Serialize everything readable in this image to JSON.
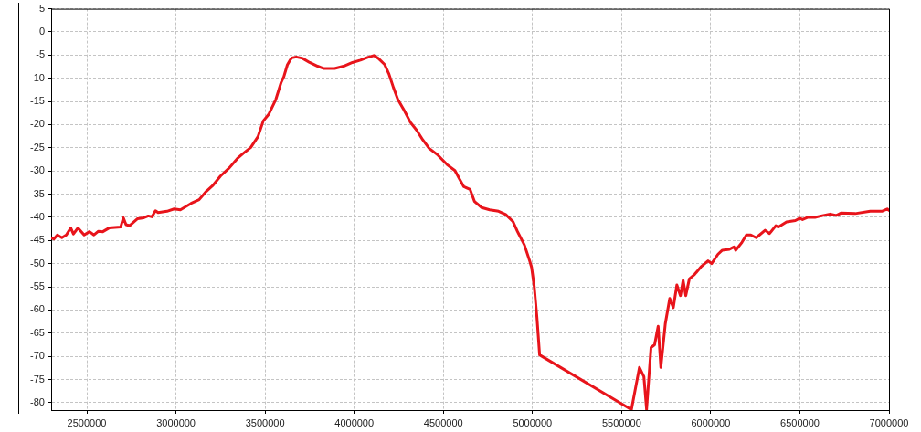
{
  "chart_data": {
    "type": "line",
    "x": [
      2300000,
      2315000,
      2335000,
      2360000,
      2385000,
      2410000,
      2425000,
      2450000,
      2485000,
      2515000,
      2540000,
      2565000,
      2590000,
      2625000,
      2690000,
      2705000,
      2720000,
      2740000,
      2785000,
      2820000,
      2845000,
      2865000,
      2885000,
      2900000,
      2950000,
      2990000,
      3025000,
      3085000,
      3130000,
      3170000,
      3205000,
      3250000,
      3300000,
      3345000,
      3375000,
      3420000,
      3460000,
      3490000,
      3520000,
      3560000,
      3590000,
      3605000,
      3625000,
      3640000,
      3650000,
      3675000,
      3710000,
      3750000,
      3795000,
      3830000,
      3890000,
      3940000,
      3990000,
      4035000,
      4075000,
      4110000,
      4135000,
      4170000,
      4195000,
      4220000,
      4245000,
      4280000,
      4315000,
      4350000,
      4385000,
      4420000,
      4470000,
      4520000,
      4565000,
      4590000,
      4615000,
      4650000,
      4675000,
      4715000,
      4760000,
      4810000,
      4850000,
      4890000,
      4915000,
      4955000,
      4985000,
      4995000,
      5010000,
      5025000,
      5040000,
      5555000,
      5600000,
      5625000,
      5640000,
      5665000,
      5685000,
      5705000,
      5720000,
      5745000,
      5770000,
      5790000,
      5810000,
      5830000,
      5845000,
      5860000,
      5880000,
      5910000,
      5945000,
      5985000,
      6005000,
      6040000,
      6065000,
      6105000,
      6130000,
      6140000,
      6175000,
      6200000,
      6225000,
      6255000,
      6305000,
      6330000,
      6365000,
      6380000,
      6425000,
      6475000,
      6500000,
      6515000,
      6545000,
      6585000,
      6620000,
      6670000,
      6705000,
      6730000,
      6810000,
      6895000,
      6960000,
      6990000,
      7000000
    ],
    "values": [
      -44.4,
      -44.7,
      -43.8,
      -44.4,
      -43.8,
      -42.3,
      -43.6,
      -42.3,
      -43.8,
      -43.1,
      -43.8,
      -43.0,
      -43.1,
      -42.3,
      -42.1,
      -40.1,
      -41.6,
      -41.8,
      -40.3,
      -40.1,
      -39.7,
      -39.9,
      -38.6,
      -39.0,
      -38.7,
      -38.2,
      -38.4,
      -37.0,
      -36.2,
      -34.4,
      -33.2,
      -31.1,
      -29.3,
      -27.3,
      -26.3,
      -24.9,
      -22.6,
      -19.2,
      -17.8,
      -14.6,
      -10.9,
      -9.7,
      -7.1,
      -6.1,
      -5.6,
      -5.4,
      -5.7,
      -6.6,
      -7.4,
      -7.9,
      -7.9,
      -7.4,
      -6.6,
      -6.1,
      -5.5,
      -5.1,
      -5.7,
      -7.0,
      -9.1,
      -12.0,
      -14.6,
      -16.9,
      -19.5,
      -21.2,
      -23.3,
      -25.1,
      -26.6,
      -28.6,
      -29.9,
      -31.7,
      -33.4,
      -34.0,
      -36.6,
      -37.9,
      -38.4,
      -38.7,
      -39.4,
      -40.9,
      -43.0,
      -46.0,
      -49.5,
      -50.8,
      -55.0,
      -61.6,
      -69.7,
      -81.5,
      -72.4,
      -74.4,
      -81.5,
      -68.1,
      -67.5,
      -63.5,
      -72.4,
      -63.0,
      -57.5,
      -59.5,
      -54.6,
      -56.9,
      -53.6,
      -56.9,
      -53.3,
      -52.3,
      -50.7,
      -49.4,
      -50.0,
      -48.0,
      -47.1,
      -46.9,
      -46.4,
      -47.1,
      -45.4,
      -43.8,
      -43.8,
      -44.4,
      -42.8,
      -43.5,
      -41.8,
      -42.1,
      -41.0,
      -40.7,
      -40.2,
      -40.5,
      -40.0,
      -40.0,
      -39.7,
      -39.3,
      -39.6,
      -39.1,
      -39.2,
      -38.7,
      -38.7,
      -38.2,
      -38.5
    ],
    "color": "#e8141b",
    "xlim": [
      2300000,
      7000000
    ],
    "xticks": [
      2500000,
      3000000,
      3500000,
      4000000,
      4500000,
      5000000,
      5500000,
      6000000,
      6500000,
      7000000
    ],
    "ylim": [
      -81.6,
      5
    ],
    "yticks": [
      -80,
      -75,
      -70,
      -65,
      -60,
      -55,
      -50,
      -45,
      -40,
      -35,
      -30,
      -25,
      -20,
      -15,
      -10,
      -5,
      0,
      5
    ],
    "grid": true,
    "marker": "none",
    "line_style": "solid"
  }
}
